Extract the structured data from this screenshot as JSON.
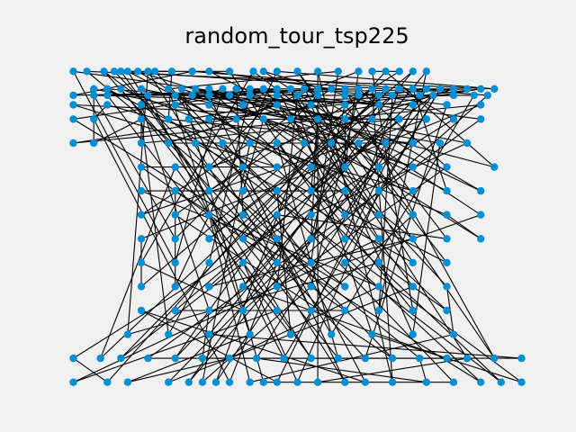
{
  "chart_data": {
    "type": "scatter",
    "title": "random_tour_tsp225",
    "xlabel": "",
    "ylabel": "",
    "axes_visible": false,
    "grid": false,
    "xlim": [
      -6,
      666
    ],
    "ylim": [
      -6,
      396
    ],
    "colors": {
      "background": "#f0f0f0",
      "point": "#008fd5",
      "edge": "#000000"
    },
    "points": [
      [
        0,
        390
      ],
      [
        20,
        390
      ],
      [
        45,
        390
      ],
      [
        60,
        390
      ],
      [
        70,
        390
      ],
      [
        80,
        390
      ],
      [
        95,
        390
      ],
      [
        110,
        390
      ],
      [
        120,
        390
      ],
      [
        145,
        390
      ],
      [
        175,
        390
      ],
      [
        200,
        390
      ],
      [
        230,
        390
      ],
      [
        265,
        390
      ],
      [
        280,
        390
      ],
      [
        300,
        390
      ],
      [
        330,
        390
      ],
      [
        360,
        390
      ],
      [
        390,
        390
      ],
      [
        420,
        390
      ],
      [
        440,
        390
      ],
      [
        460,
        390
      ],
      [
        480,
        390
      ],
      [
        500,
        390
      ],
      [
        520,
        390
      ],
      [
        30,
        368
      ],
      [
        50,
        368
      ],
      [
        70,
        368
      ],
      [
        100,
        368
      ],
      [
        140,
        368
      ],
      [
        160,
        368
      ],
      [
        180,
        368
      ],
      [
        200,
        368
      ],
      [
        220,
        368
      ],
      [
        240,
        368
      ],
      [
        260,
        368
      ],
      [
        280,
        368
      ],
      [
        300,
        368
      ],
      [
        320,
        368
      ],
      [
        340,
        368
      ],
      [
        360,
        368
      ],
      [
        380,
        368
      ],
      [
        400,
        368
      ],
      [
        420,
        368
      ],
      [
        440,
        368
      ],
      [
        460,
        368
      ],
      [
        480,
        368
      ],
      [
        500,
        368
      ],
      [
        520,
        368
      ],
      [
        540,
        368
      ],
      [
        560,
        368
      ],
      [
        580,
        368
      ],
      [
        600,
        368
      ],
      [
        620,
        368
      ],
      [
        0,
        360
      ],
      [
        30,
        360
      ],
      [
        50,
        360
      ],
      [
        110,
        360
      ],
      [
        150,
        360
      ],
      [
        175,
        360
      ],
      [
        200,
        360
      ],
      [
        230,
        360
      ],
      [
        260,
        360
      ],
      [
        300,
        360
      ],
      [
        330,
        360
      ],
      [
        360,
        360
      ],
      [
        400,
        360
      ],
      [
        420,
        360
      ],
      [
        450,
        360
      ],
      [
        470,
        360
      ],
      [
        510,
        360
      ],
      [
        530,
        360
      ],
      [
        560,
        360
      ],
      [
        590,
        360
      ],
      [
        610,
        360
      ],
      [
        0,
        348
      ],
      [
        50,
        348
      ],
      [
        100,
        348
      ],
      [
        150,
        348
      ],
      [
        200,
        348
      ],
      [
        250,
        348
      ],
      [
        300,
        348
      ],
      [
        350,
        348
      ],
      [
        400,
        348
      ],
      [
        450,
        348
      ],
      [
        500,
        348
      ],
      [
        550,
        348
      ],
      [
        600,
        348
      ],
      [
        0,
        330
      ],
      [
        30,
        330
      ],
      [
        100,
        330
      ],
      [
        140,
        330
      ],
      [
        170,
        330
      ],
      [
        200,
        330
      ],
      [
        240,
        330
      ],
      [
        280,
        330
      ],
      [
        320,
        330
      ],
      [
        360,
        330
      ],
      [
        400,
        330
      ],
      [
        440,
        330
      ],
      [
        480,
        330
      ],
      [
        520,
        330
      ],
      [
        560,
        330
      ],
      [
        600,
        330
      ],
      [
        0,
        300
      ],
      [
        30,
        300
      ],
      [
        100,
        300
      ],
      [
        140,
        300
      ],
      [
        180,
        300
      ],
      [
        220,
        300
      ],
      [
        260,
        300
      ],
      [
        300,
        300
      ],
      [
        340,
        300
      ],
      [
        380,
        300
      ],
      [
        420,
        300
      ],
      [
        460,
        300
      ],
      [
        500,
        300
      ],
      [
        540,
        300
      ],
      [
        580,
        300
      ],
      [
        100,
        270
      ],
      [
        150,
        270
      ],
      [
        200,
        270
      ],
      [
        250,
        270
      ],
      [
        300,
        270
      ],
      [
        350,
        270
      ],
      [
        400,
        270
      ],
      [
        450,
        270
      ],
      [
        500,
        270
      ],
      [
        550,
        270
      ],
      [
        620,
        270
      ],
      [
        100,
        240
      ],
      [
        150,
        240
      ],
      [
        200,
        240
      ],
      [
        250,
        240
      ],
      [
        300,
        240
      ],
      [
        350,
        240
      ],
      [
        400,
        240
      ],
      [
        450,
        240
      ],
      [
        500,
        240
      ],
      [
        550,
        240
      ],
      [
        600,
        240
      ],
      [
        100,
        210
      ],
      [
        150,
        210
      ],
      [
        200,
        210
      ],
      [
        250,
        210
      ],
      [
        300,
        210
      ],
      [
        350,
        210
      ],
      [
        400,
        210
      ],
      [
        450,
        210
      ],
      [
        500,
        210
      ],
      [
        550,
        210
      ],
      [
        600,
        210
      ],
      [
        100,
        180
      ],
      [
        150,
        180
      ],
      [
        200,
        180
      ],
      [
        250,
        180
      ],
      [
        300,
        180
      ],
      [
        350,
        180
      ],
      [
        400,
        180
      ],
      [
        450,
        180
      ],
      [
        500,
        180
      ],
      [
        550,
        180
      ],
      [
        600,
        180
      ],
      [
        100,
        150
      ],
      [
        150,
        150
      ],
      [
        200,
        150
      ],
      [
        250,
        150
      ],
      [
        300,
        150
      ],
      [
        350,
        150
      ],
      [
        400,
        150
      ],
      [
        450,
        150
      ],
      [
        500,
        150
      ],
      [
        550,
        150
      ],
      [
        100,
        120
      ],
      [
        150,
        120
      ],
      [
        200,
        120
      ],
      [
        250,
        120
      ],
      [
        300,
        120
      ],
      [
        350,
        120
      ],
      [
        400,
        120
      ],
      [
        450,
        120
      ],
      [
        500,
        120
      ],
      [
        550,
        120
      ],
      [
        100,
        90
      ],
      [
        150,
        90
      ],
      [
        200,
        90
      ],
      [
        250,
        90
      ],
      [
        300,
        90
      ],
      [
        350,
        90
      ],
      [
        400,
        90
      ],
      [
        450,
        90
      ],
      [
        500,
        90
      ],
      [
        550,
        90
      ],
      [
        80,
        60
      ],
      [
        140,
        60
      ],
      [
        200,
        60
      ],
      [
        260,
        60
      ],
      [
        320,
        60
      ],
      [
        380,
        60
      ],
      [
        440,
        60
      ],
      [
        500,
        60
      ],
      [
        560,
        60
      ],
      [
        0,
        30
      ],
      [
        40,
        30
      ],
      [
        70,
        30
      ],
      [
        110,
        30
      ],
      [
        150,
        30
      ],
      [
        190,
        30
      ],
      [
        230,
        30
      ],
      [
        270,
        30
      ],
      [
        310,
        30
      ],
      [
        350,
        30
      ],
      [
        390,
        30
      ],
      [
        430,
        30
      ],
      [
        470,
        30
      ],
      [
        510,
        30
      ],
      [
        550,
        30
      ],
      [
        580,
        30
      ],
      [
        620,
        30
      ],
      [
        660,
        30
      ],
      [
        0,
        0
      ],
      [
        50,
        0
      ],
      [
        80,
        0
      ],
      [
        140,
        0
      ],
      [
        170,
        0
      ],
      [
        190,
        0
      ],
      [
        210,
        0
      ],
      [
        230,
        0
      ],
      [
        260,
        0
      ],
      [
        280,
        0
      ],
      [
        300,
        0
      ],
      [
        330,
        0
      ],
      [
        360,
        0
      ],
      [
        400,
        0
      ],
      [
        430,
        0
      ],
      [
        470,
        0
      ],
      [
        520,
        0
      ],
      [
        560,
        0
      ],
      [
        600,
        0
      ],
      [
        630,
        0
      ],
      [
        660,
        0
      ]
    ]
  }
}
